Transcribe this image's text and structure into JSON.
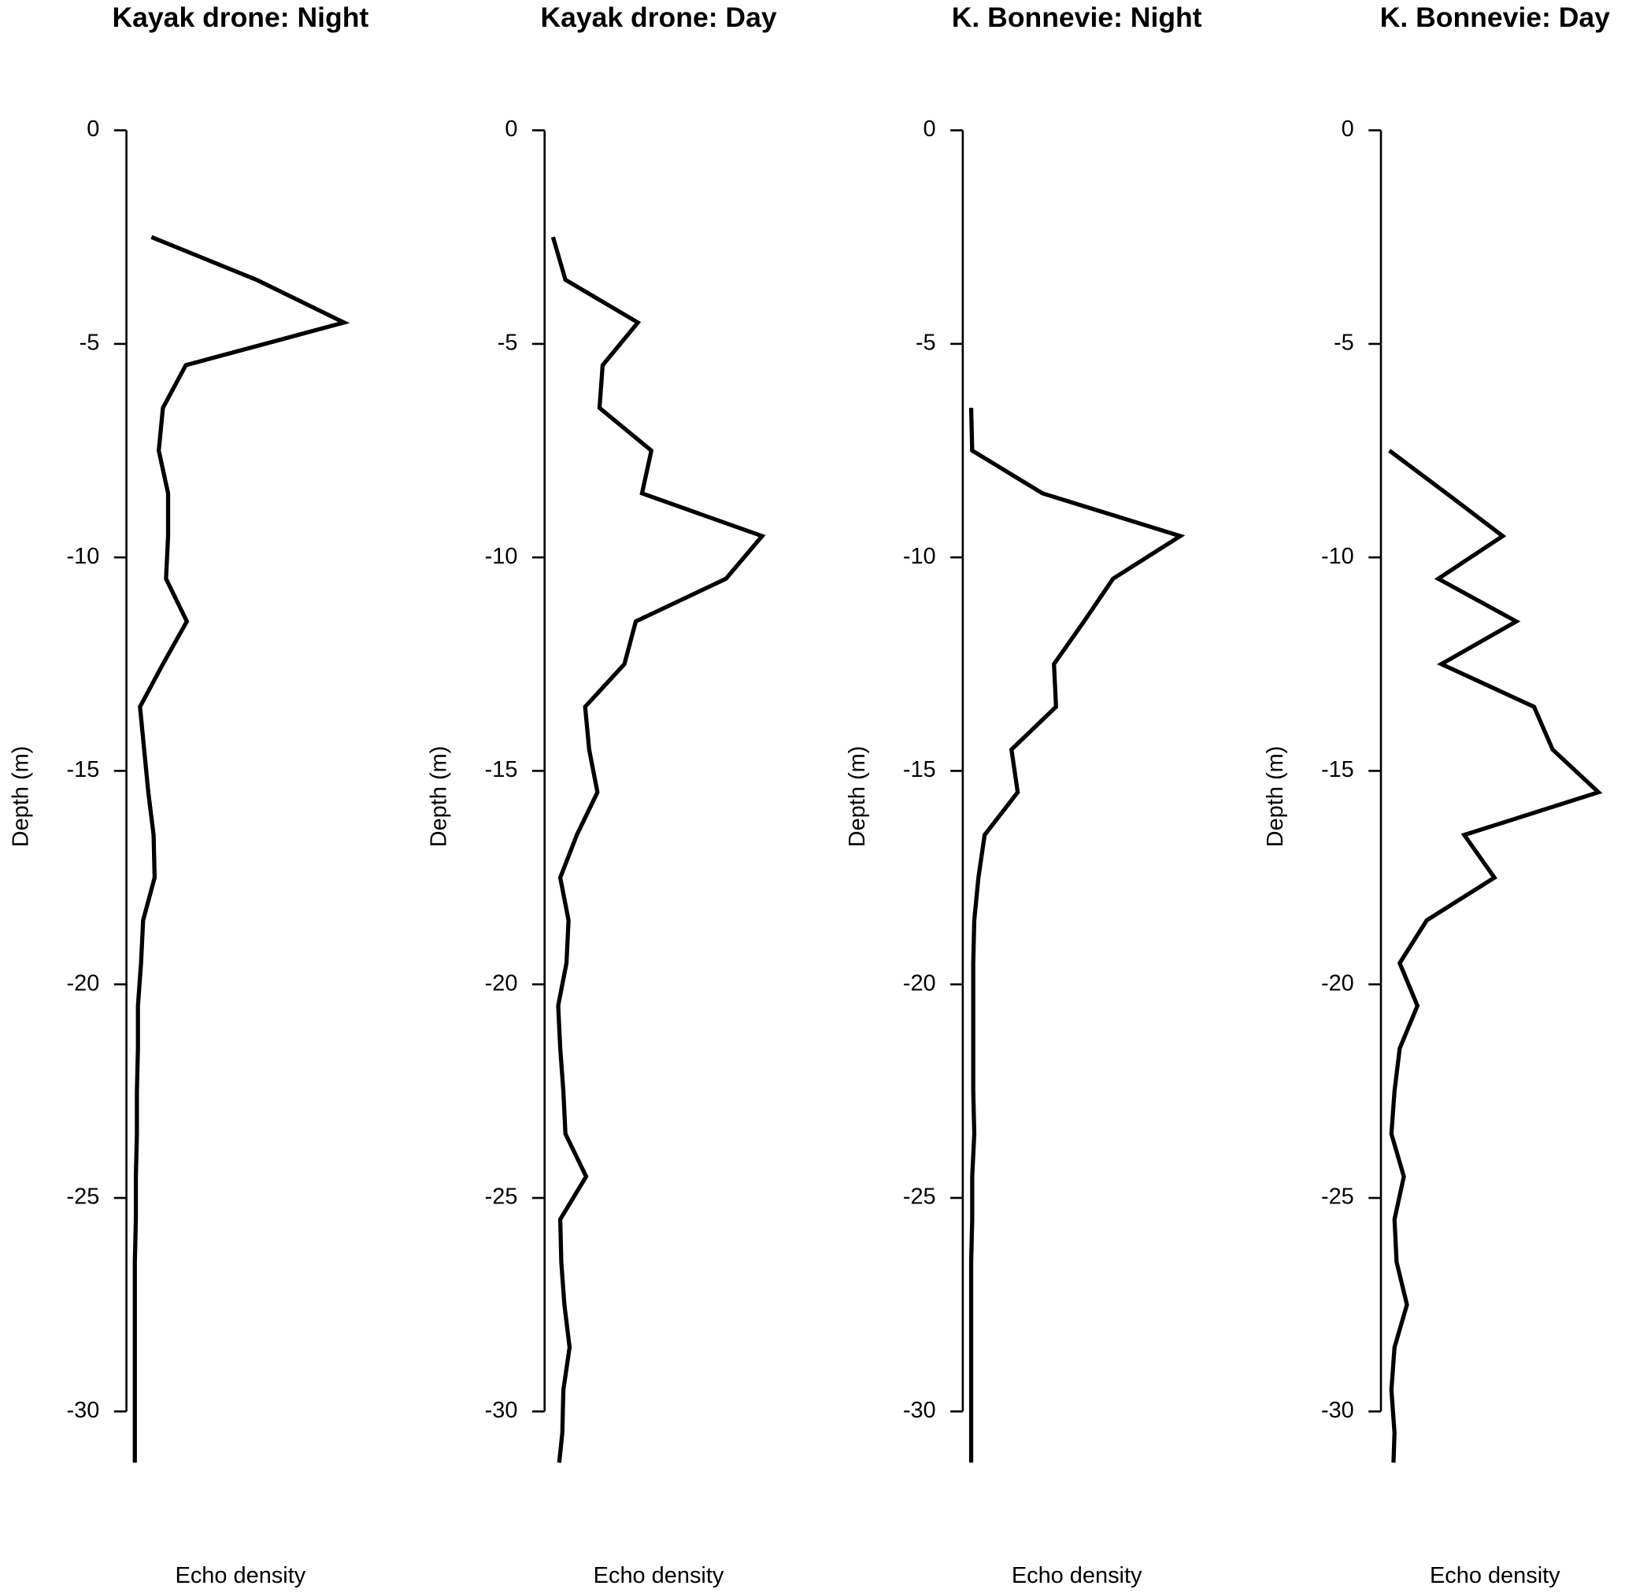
{
  "chart_data": [
    {
      "type": "line",
      "title": "Kayak drone: Night",
      "xlabel": "Echo density",
      "ylabel": "Depth (m)",
      "y": [
        -2.5,
        -3.5,
        -4.5,
        -5.5,
        -6.5,
        -7.5,
        -8.5,
        -9.5,
        -10.5,
        -11.5,
        -12.5,
        -13.5,
        -14.5,
        -15.5,
        -16.5,
        -17.5,
        -18.5,
        -19.5,
        -20.5,
        -21.5,
        -22.5,
        -23.5,
        -24.5,
        -25.5,
        -26.5,
        -27.5,
        -28.5,
        -29.5,
        -30.5,
        -31.2
      ],
      "values": [
        25,
        126,
        210,
        58,
        36,
        32,
        41,
        41,
        39,
        59,
        36,
        14,
        18,
        22,
        27,
        28,
        17,
        15,
        12,
        12,
        11,
        11,
        10,
        10,
        9,
        9,
        9,
        9,
        9,
        9
      ],
      "ylim": [
        -31.2,
        0
      ],
      "yticks": [
        0,
        -5,
        -10,
        -15,
        -20,
        -25,
        -30
      ],
      "color": "#000000"
    },
    {
      "type": "line",
      "title": "Kayak drone: Day",
      "xlabel": "Echo density",
      "ylabel": "Depth (m)",
      "y": [
        -2.5,
        -3.5,
        -4.5,
        -5.5,
        -6.5,
        -7.5,
        -8.5,
        -9.5,
        -10.5,
        -11.5,
        -12.5,
        -13.5,
        -14.5,
        -15.5,
        -16.5,
        -17.5,
        -18.5,
        -19.5,
        -20.5,
        -21.5,
        -22.5,
        -23.5,
        -24.5,
        -25.5,
        -26.5,
        -27.5,
        -28.5,
        -29.5,
        -30.5,
        -31.2
      ],
      "values": [
        8,
        20,
        90,
        56,
        53,
        103,
        94,
        210,
        175,
        88,
        77,
        39,
        43,
        51,
        31,
        15,
        23,
        21,
        13,
        15,
        18,
        20,
        40,
        15,
        16,
        19,
        24,
        18,
        17,
        14
      ],
      "ylim": [
        -31.2,
        0
      ],
      "yticks": [
        0,
        -5,
        -10,
        -15,
        -20,
        -25,
        -30
      ],
      "color": "#000000"
    },
    {
      "type": "line",
      "title": "K. Bonnevie: Night",
      "xlabel": "Echo density",
      "ylabel": "Depth (m)",
      "y": [
        -6.5,
        -7.5,
        -8.5,
        -9.5,
        -10.5,
        -11.5,
        -12.5,
        -13.5,
        -14.5,
        -15.5,
        -16.5,
        -17.5,
        -18.5,
        -19.5,
        -20.5,
        -21.5,
        -22.5,
        -23.5,
        -24.5,
        -25.5,
        -26.5,
        -27.5,
        -28.5,
        -29.5,
        -30.5,
        -31.2
      ],
      "values": [
        9,
        10,
        78,
        211,
        146,
        118,
        89,
        91,
        48,
        54,
        22,
        16,
        12,
        11,
        11,
        11,
        11,
        12,
        10,
        10,
        9,
        9,
        9,
        9,
        9,
        9
      ],
      "ylim": [
        -31.2,
        0
      ],
      "yticks": [
        0,
        -5,
        -10,
        -15,
        -20,
        -25,
        -30
      ],
      "color": "#000000"
    },
    {
      "type": "line",
      "title": "K. Bonnevie: Day",
      "xlabel": "Echo density",
      "ylabel": "Depth (m)",
      "y": [
        -7.5,
        -8.5,
        -9.5,
        -10.5,
        -11.5,
        -12.5,
        -13.5,
        -14.5,
        -15.5,
        -16.5,
        -17.5,
        -18.5,
        -19.5,
        -20.5,
        -21.5,
        -22.5,
        -23.5,
        -24.5,
        -25.5,
        -26.5,
        -27.5,
        -28.5,
        -29.5,
        -30.5,
        -31.2
      ],
      "values": [
        8,
        63,
        117,
        55,
        130,
        58,
        147,
        165,
        209,
        80,
        109,
        44,
        18,
        35,
        18,
        13,
        10,
        22,
        13,
        15,
        25,
        13,
        10,
        13,
        12
      ],
      "ylim": [
        -31.2,
        0
      ],
      "yticks": [
        0,
        -5,
        -10,
        -15,
        -20,
        -25,
        -30
      ],
      "color": "#000000"
    }
  ]
}
